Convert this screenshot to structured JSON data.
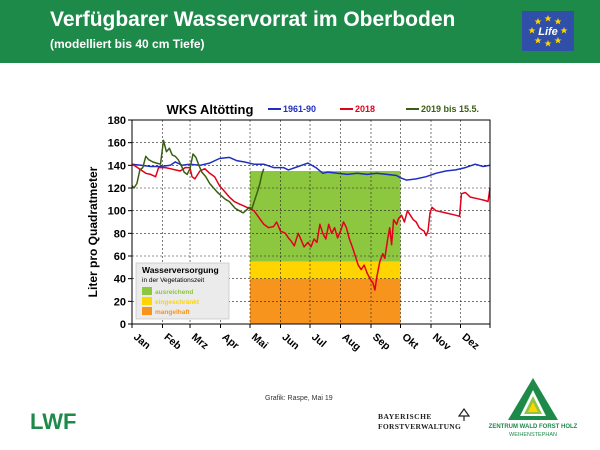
{
  "header": {
    "title": "Verfügbarer Wasservorrat im Oberboden",
    "subtitle": "(modelliert bis 40 cm Tiefe)",
    "eu_logo_text": "Life",
    "background_color": "#1e8a4a"
  },
  "footer": {
    "credit": "Grafik: Raspe, Mai 19",
    "lwf_logo_text": "LWF",
    "bayern_line1": "BAYERISCHE",
    "bayern_line2": "FORSTVERWALTUNG",
    "zentrum_line1": "ZENTRUM WALD FORST HOLZ",
    "zentrum_line2": "WEIHENSTEPHAN"
  },
  "chart_data": {
    "type": "line",
    "title": "WKS Altötting",
    "xlabel": "",
    "ylabel": "Liter pro Quadratmeter",
    "ylim": [
      0,
      180
    ],
    "yticks": [
      0,
      20,
      40,
      60,
      80,
      100,
      120,
      140,
      160,
      180
    ],
    "x_unit": "day_of_year",
    "xlim": [
      1,
      365
    ],
    "month_labels": [
      "Jan",
      "Feb",
      "Mrz",
      "Apr",
      "Mai",
      "Jun",
      "Jul",
      "Aug",
      "Sep",
      "Okt",
      "Nov",
      "Dez"
    ],
    "grid": true,
    "legend": {
      "position": "top",
      "entries": [
        "1961-90",
        "2018",
        "2019 bis 15.5."
      ]
    },
    "vegetation_bands": {
      "title": "Wasserversorgung",
      "subtitle": "in der Vegetationszeit",
      "x_start": 121,
      "x_end": 274,
      "categories": [
        {
          "label": "ausreichend",
          "ymin": 55,
          "ymax": 135,
          "color": "#8dc63f"
        },
        {
          "label": "eingeschränkt",
          "ymin": 40,
          "ymax": 55,
          "color": "#ffd400"
        },
        {
          "label": "mangelhaft",
          "ymin": 0,
          "ymax": 40,
          "color": "#f7941d"
        }
      ]
    },
    "series": [
      {
        "name": "1961-90",
        "color": "#1f2fbf",
        "points": [
          [
            1,
            141
          ],
          [
            10,
            140
          ],
          [
            20,
            139
          ],
          [
            30,
            139
          ],
          [
            40,
            140
          ],
          [
            45,
            143
          ],
          [
            52,
            140
          ],
          [
            60,
            141
          ],
          [
            70,
            140
          ],
          [
            80,
            142
          ],
          [
            90,
            146
          ],
          [
            100,
            147
          ],
          [
            108,
            144
          ],
          [
            115,
            143
          ],
          [
            125,
            141
          ],
          [
            135,
            141
          ],
          [
            145,
            138
          ],
          [
            155,
            138
          ],
          [
            160,
            136
          ],
          [
            170,
            139
          ],
          [
            180,
            142
          ],
          [
            188,
            138
          ],
          [
            195,
            133
          ],
          [
            200,
            134
          ],
          [
            210,
            133
          ],
          [
            220,
            132
          ],
          [
            230,
            133
          ],
          [
            240,
            132
          ],
          [
            250,
            133
          ],
          [
            260,
            132
          ],
          [
            270,
            131
          ],
          [
            274,
            129
          ],
          [
            280,
            127
          ],
          [
            290,
            128
          ],
          [
            300,
            130
          ],
          [
            310,
            133
          ],
          [
            320,
            135
          ],
          [
            330,
            136
          ],
          [
            340,
            138
          ],
          [
            350,
            141
          ],
          [
            358,
            139
          ],
          [
            365,
            140
          ]
        ]
      },
      {
        "name": "2018",
        "color": "#e3001b",
        "points": [
          [
            1,
            141
          ],
          [
            5,
            139
          ],
          [
            10,
            136
          ],
          [
            15,
            133
          ],
          [
            20,
            132
          ],
          [
            25,
            130
          ],
          [
            28,
            138
          ],
          [
            35,
            138
          ],
          [
            40,
            137
          ],
          [
            45,
            136
          ],
          [
            50,
            135
          ],
          [
            55,
            138
          ],
          [
            60,
            138
          ],
          [
            62,
            130
          ],
          [
            65,
            128
          ],
          [
            70,
            135
          ],
          [
            75,
            137
          ],
          [
            80,
            133
          ],
          [
            85,
            130
          ],
          [
            90,
            122
          ],
          [
            95,
            117
          ],
          [
            100,
            112
          ],
          [
            105,
            108
          ],
          [
            110,
            106
          ],
          [
            115,
            104
          ],
          [
            120,
            102
          ],
          [
            125,
            100
          ],
          [
            130,
            94
          ],
          [
            135,
            88
          ],
          [
            140,
            85
          ],
          [
            145,
            86
          ],
          [
            148,
            90
          ],
          [
            152,
            82
          ],
          [
            157,
            80
          ],
          [
            160,
            76
          ],
          [
            163,
            73
          ],
          [
            166,
            69
          ],
          [
            170,
            80
          ],
          [
            173,
            74
          ],
          [
            176,
            68
          ],
          [
            180,
            72
          ],
          [
            183,
            68
          ],
          [
            186,
            75
          ],
          [
            189,
            72
          ],
          [
            192,
            88
          ],
          [
            195,
            80
          ],
          [
            198,
            75
          ],
          [
            201,
            88
          ],
          [
            204,
            80
          ],
          [
            207,
            85
          ],
          [
            210,
            76
          ],
          [
            213,
            82
          ],
          [
            216,
            90
          ],
          [
            219,
            85
          ],
          [
            222,
            75
          ],
          [
            225,
            68
          ],
          [
            228,
            60
          ],
          [
            231,
            52
          ],
          [
            234,
            48
          ],
          [
            237,
            52
          ],
          [
            240,
            45
          ],
          [
            243,
            40
          ],
          [
            246,
            36
          ],
          [
            248,
            30
          ],
          [
            250,
            42
          ],
          [
            253,
            55
          ],
          [
            256,
            62
          ],
          [
            258,
            58
          ],
          [
            261,
            75
          ],
          [
            263,
            85
          ],
          [
            265,
            70
          ],
          [
            267,
            92
          ],
          [
            270,
            88
          ],
          [
            272,
            93
          ],
          [
            275,
            96
          ],
          [
            278,
            90
          ],
          [
            281,
            100
          ],
          [
            284,
            96
          ],
          [
            287,
            92
          ],
          [
            290,
            90
          ],
          [
            293,
            85
          ],
          [
            296,
            83
          ],
          [
            298,
            82
          ],
          [
            300,
            78
          ],
          [
            302,
            82
          ],
          [
            304,
            98
          ],
          [
            306,
            103
          ],
          [
            310,
            100
          ],
          [
            320,
            98
          ],
          [
            330,
            96
          ],
          [
            334,
            95
          ],
          [
            336,
            115
          ],
          [
            340,
            116
          ],
          [
            345,
            112
          ],
          [
            350,
            111
          ],
          [
            355,
            110
          ],
          [
            360,
            109
          ],
          [
            363,
            108
          ],
          [
            365,
            120
          ]
        ]
      },
      {
        "name": "2019 bis 15.5.",
        "color": "#3a5f14",
        "points": [
          [
            1,
            122
          ],
          [
            3,
            120
          ],
          [
            6,
            124
          ],
          [
            9,
            136
          ],
          [
            12,
            138
          ],
          [
            15,
            148
          ],
          [
            18,
            145
          ],
          [
            22,
            143
          ],
          [
            26,
            142
          ],
          [
            30,
            141
          ],
          [
            33,
            162
          ],
          [
            36,
            152
          ],
          [
            39,
            155
          ],
          [
            42,
            149
          ],
          [
            45,
            148
          ],
          [
            48,
            145
          ],
          [
            51,
            140
          ],
          [
            54,
            134
          ],
          [
            57,
            132
          ],
          [
            60,
            137
          ],
          [
            63,
            150
          ],
          [
            66,
            147
          ],
          [
            69,
            140
          ],
          [
            72,
            134
          ],
          [
            76,
            130
          ],
          [
            80,
            124
          ],
          [
            84,
            120
          ],
          [
            88,
            116
          ],
          [
            92,
            113
          ],
          [
            96,
            110
          ],
          [
            100,
            108
          ],
          [
            103,
            105
          ],
          [
            106,
            102
          ],
          [
            110,
            100
          ],
          [
            114,
            98
          ],
          [
            118,
            101
          ],
          [
            120,
            103
          ],
          [
            123,
            102
          ],
          [
            126,
            110
          ],
          [
            129,
            118
          ],
          [
            131,
            124
          ],
          [
            133,
            132
          ],
          [
            135,
            137
          ]
        ]
      }
    ]
  }
}
